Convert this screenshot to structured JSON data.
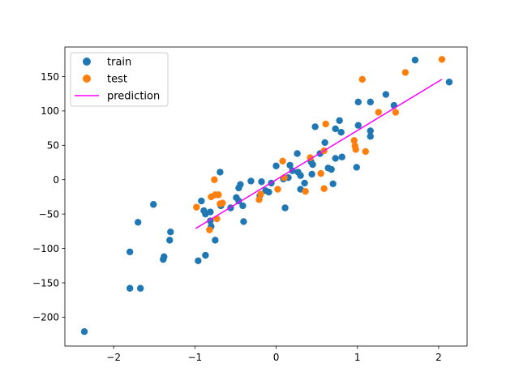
{
  "chart_data": {
    "type": "scatter",
    "title": "",
    "xlabel": "",
    "ylabel": "",
    "xlim": [
      -2.6,
      2.35
    ],
    "ylim": [
      -242,
      193
    ],
    "xticks": [
      -2,
      -1,
      0,
      1,
      2
    ],
    "yticks": [
      -200,
      -150,
      -100,
      -50,
      0,
      50,
      100,
      150
    ],
    "xtick_labels": [
      "−2",
      "−1",
      "0",
      "1",
      "2"
    ],
    "ytick_labels": [
      "−200",
      "−150",
      "−100",
      "−50",
      "0",
      "50",
      "100",
      "150"
    ],
    "grid": false,
    "legend_position": "top-left",
    "series": [
      {
        "name": "train",
        "kind": "scatter",
        "color": "#1f77b4",
        "points": [
          [
            -2.36,
            -221
          ],
          [
            -1.8,
            -105
          ],
          [
            -1.8,
            -158
          ],
          [
            -1.7,
            -62
          ],
          [
            -1.67,
            -158
          ],
          [
            -1.51,
            -36
          ],
          [
            -1.39,
            -116
          ],
          [
            -1.38,
            -112
          ],
          [
            -1.31,
            -88
          ],
          [
            -1.3,
            -76
          ],
          [
            -0.96,
            -118
          ],
          [
            -0.92,
            -31
          ],
          [
            -0.89,
            -45
          ],
          [
            -0.87,
            -110
          ],
          [
            -0.87,
            -50
          ],
          [
            -0.81,
            -47
          ],
          [
            -0.81,
            -60
          ],
          [
            -0.8,
            -68
          ],
          [
            -0.75,
            -88
          ],
          [
            -0.69,
            11
          ],
          [
            -0.68,
            -38
          ],
          [
            -0.56,
            -41
          ],
          [
            -0.49,
            -26
          ],
          [
            -0.46,
            -31
          ],
          [
            -0.46,
            -12
          ],
          [
            -0.44,
            -7
          ],
          [
            -0.41,
            -38
          ],
          [
            -0.4,
            -61
          ],
          [
            -0.31,
            -2
          ],
          [
            -0.2,
            -23
          ],
          [
            -0.18,
            -3
          ],
          [
            -0.13,
            -16
          ],
          [
            -0.09,
            -18
          ],
          [
            -0.06,
            -5
          ],
          [
            0.0,
            20
          ],
          [
            0.09,
            1
          ],
          [
            0.11,
            -41
          ],
          [
            0.15,
            3
          ],
          [
            0.17,
            21
          ],
          [
            0.2,
            13
          ],
          [
            0.26,
            38
          ],
          [
            0.27,
            11
          ],
          [
            0.3,
            -14
          ],
          [
            0.3,
            6
          ],
          [
            0.35,
            -5
          ],
          [
            0.43,
            26
          ],
          [
            0.44,
            8
          ],
          [
            0.45,
            22
          ],
          [
            0.48,
            77
          ],
          [
            0.54,
            38
          ],
          [
            0.6,
            54
          ],
          [
            0.64,
            17
          ],
          [
            0.68,
            15
          ],
          [
            0.7,
            -6
          ],
          [
            0.73,
            31
          ],
          [
            0.73,
            74
          ],
          [
            0.78,
            86
          ],
          [
            0.8,
            69
          ],
          [
            0.81,
            33
          ],
          [
            0.99,
            18
          ],
          [
            1.01,
            79
          ],
          [
            1.01,
            113
          ],
          [
            1.16,
            113
          ],
          [
            1.16,
            71
          ],
          [
            1.16,
            63
          ],
          [
            1.35,
            124
          ],
          [
            1.45,
            108
          ],
          [
            1.71,
            174
          ],
          [
            2.13,
            142
          ]
        ]
      },
      {
        "name": "test",
        "kind": "scatter",
        "color": "#ff7f0e",
        "points": [
          [
            -0.98,
            -40
          ],
          [
            -0.82,
            -73
          ],
          [
            -0.8,
            -25
          ],
          [
            -0.76,
            0
          ],
          [
            -0.75,
            -22
          ],
          [
            -0.73,
            -57
          ],
          [
            -0.71,
            -22
          ],
          [
            -0.69,
            -35
          ],
          [
            -0.66,
            -34
          ],
          [
            -0.21,
            -29
          ],
          [
            -0.19,
            -21
          ],
          [
            0.02,
            -14
          ],
          [
            0.08,
            27
          ],
          [
            0.1,
            3
          ],
          [
            0.36,
            -17
          ],
          [
            0.42,
            32
          ],
          [
            0.55,
            9
          ],
          [
            0.59,
            42
          ],
          [
            0.59,
            -13
          ],
          [
            0.61,
            81
          ],
          [
            0.96,
            57
          ],
          [
            0.97,
            49
          ],
          [
            0.98,
            44
          ],
          [
            1.06,
            146
          ],
          [
            1.1,
            41
          ],
          [
            1.26,
            98
          ],
          [
            1.47,
            98
          ],
          [
            1.59,
            156
          ],
          [
            2.04,
            175
          ]
        ]
      },
      {
        "name": "prediction",
        "kind": "line",
        "color": "#ff00ff",
        "points": [
          [
            -0.99,
            -71
          ],
          [
            2.04,
            146
          ]
        ]
      }
    ]
  }
}
